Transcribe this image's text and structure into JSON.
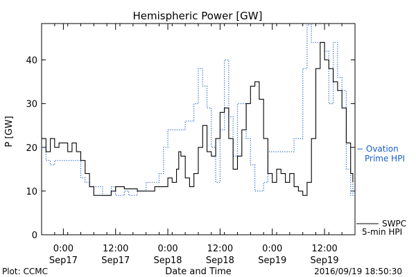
{
  "chart_data": {
    "type": "line",
    "title": "Hemispheric Power [GW]",
    "xlabel": "Date and Time",
    "ylabel": "P [GW]",
    "xlim": [
      "2016-09-16 19:00",
      "2016-09-19 19:00"
    ],
    "ylim": [
      0,
      48
    ],
    "grid": false,
    "y_ticks": [
      0,
      10,
      20,
      30,
      40
    ],
    "x_ticks": [
      {
        "time": "2016-09-17 00:00",
        "label": "0:00",
        "date": "Sep17"
      },
      {
        "time": "2016-09-17 12:00",
        "label": "12:00",
        "date": "Sep17"
      },
      {
        "time": "2016-09-18 00:00",
        "label": "0:00",
        "date": "Sep18"
      },
      {
        "time": "2016-09-18 12:00",
        "label": "12:00",
        "date": "Sep18"
      },
      {
        "time": "2016-09-19 00:00",
        "label": "0:00",
        "date": "Sep19"
      },
      {
        "time": "2016-09-19 12:00",
        "label": "12:00",
        "date": "Sep19"
      }
    ],
    "series": [
      {
        "name": "SWPC 5-min HPI",
        "legend_lines": [
          "SWPC",
          "5-min HPI"
        ],
        "color": "#000000",
        "style": "solid",
        "points": [
          [
            "2016-09-16 19:00",
            22
          ],
          [
            "2016-09-16 20:00",
            19
          ],
          [
            "2016-09-16 21:00",
            22
          ],
          [
            "2016-09-16 22:00",
            20
          ],
          [
            "2016-09-16 23:00",
            21
          ],
          [
            "2016-09-17 00:00",
            21
          ],
          [
            "2016-09-17 01:00",
            19
          ],
          [
            "2016-09-17 02:00",
            21
          ],
          [
            "2016-09-17 03:00",
            19
          ],
          [
            "2016-09-17 04:00",
            17
          ],
          [
            "2016-09-17 05:00",
            14
          ],
          [
            "2016-09-17 06:00",
            11
          ],
          [
            "2016-09-17 07:00",
            9
          ],
          [
            "2016-09-17 09:00",
            9
          ],
          [
            "2016-09-17 11:00",
            10
          ],
          [
            "2016-09-17 12:00",
            11
          ],
          [
            "2016-09-17 14:00",
            10.5
          ],
          [
            "2016-09-17 17:00",
            10
          ],
          [
            "2016-09-17 19:00",
            10
          ],
          [
            "2016-09-17 21:00",
            11
          ],
          [
            "2016-09-17 22:00",
            11
          ],
          [
            "2016-09-18 00:00",
            13
          ],
          [
            "2016-09-18 01:00",
            12
          ],
          [
            "2016-09-18 02:00",
            15
          ],
          [
            "2016-09-18 02:30",
            19
          ],
          [
            "2016-09-18 03:00",
            18
          ],
          [
            "2016-09-18 04:00",
            13
          ],
          [
            "2016-09-18 05:00",
            11
          ],
          [
            "2016-09-18 06:00",
            14
          ],
          [
            "2016-09-18 07:00",
            20
          ],
          [
            "2016-09-18 08:00",
            25
          ],
          [
            "2016-09-18 09:00",
            19
          ],
          [
            "2016-09-18 10:00",
            18
          ],
          [
            "2016-09-18 11:00",
            22
          ],
          [
            "2016-09-18 12:00",
            28
          ],
          [
            "2016-09-18 13:00",
            29
          ],
          [
            "2016-09-18 14:00",
            22
          ],
          [
            "2016-09-18 15:00",
            15
          ],
          [
            "2016-09-18 16:00",
            18
          ],
          [
            "2016-09-18 17:00",
            24
          ],
          [
            "2016-09-18 18:00",
            30
          ],
          [
            "2016-09-18 19:00",
            34
          ],
          [
            "2016-09-18 20:00",
            35
          ],
          [
            "2016-09-18 21:00",
            31
          ],
          [
            "2016-09-18 22:00",
            22
          ],
          [
            "2016-09-18 23:00",
            14
          ],
          [
            "2016-09-19 00:00",
            12
          ],
          [
            "2016-09-19 01:00",
            15
          ],
          [
            "2016-09-19 02:00",
            14
          ],
          [
            "2016-09-19 03:00",
            12
          ],
          [
            "2016-09-19 04:00",
            14
          ],
          [
            "2016-09-19 05:00",
            11
          ],
          [
            "2016-09-19 06:00",
            10
          ],
          [
            "2016-09-19 07:00",
            9
          ],
          [
            "2016-09-19 08:00",
            12
          ],
          [
            "2016-09-19 09:00",
            22
          ],
          [
            "2016-09-19 10:00",
            38
          ],
          [
            "2016-09-19 11:00",
            44
          ],
          [
            "2016-09-19 12:00",
            40
          ],
          [
            "2016-09-19 13:00",
            38
          ],
          [
            "2016-09-19 14:00",
            35
          ],
          [
            "2016-09-19 15:00",
            33
          ],
          [
            "2016-09-19 16:00",
            29
          ],
          [
            "2016-09-19 17:00",
            21
          ],
          [
            "2016-09-19 18:00",
            14
          ],
          [
            "2016-09-19 18:30",
            12
          ]
        ]
      },
      {
        "name": "Ovation Prime HPI",
        "legend_lines": [
          "− Ovation",
          "Prime HPI"
        ],
        "color": "#1a5fc8",
        "style": "dotted",
        "points": [
          [
            "2016-09-16 19:00",
            20
          ],
          [
            "2016-09-16 20:00",
            17
          ],
          [
            "2016-09-16 21:00",
            16
          ],
          [
            "2016-09-16 22:00",
            17
          ],
          [
            "2016-09-17 03:00",
            17
          ],
          [
            "2016-09-17 04:00",
            13
          ],
          [
            "2016-09-17 05:00",
            12
          ],
          [
            "2016-09-17 06:00",
            11
          ],
          [
            "2016-09-17 08:00",
            11
          ],
          [
            "2016-09-17 09:00",
            9
          ],
          [
            "2016-09-17 11:00",
            11
          ],
          [
            "2016-09-17 12:00",
            9
          ],
          [
            "2016-09-17 14:00",
            10
          ],
          [
            "2016-09-17 15:00",
            9
          ],
          [
            "2016-09-17 17:00",
            10
          ],
          [
            "2016-09-17 18:00",
            10
          ],
          [
            "2016-09-17 19:00",
            12
          ],
          [
            "2016-09-17 21:00",
            12
          ],
          [
            "2016-09-17 22:00",
            14
          ],
          [
            "2016-09-17 23:00",
            20
          ],
          [
            "2016-09-18 00:00",
            24
          ],
          [
            "2016-09-18 03:00",
            24
          ],
          [
            "2016-09-18 04:00",
            26
          ],
          [
            "2016-09-18 06:00",
            30
          ],
          [
            "2016-09-18 07:00",
            38
          ],
          [
            "2016-09-18 08:00",
            34
          ],
          [
            "2016-09-18 09:00",
            29
          ],
          [
            "2016-09-18 10:00",
            20
          ],
          [
            "2016-09-18 11:00",
            12
          ],
          [
            "2016-09-18 12:00",
            24
          ],
          [
            "2016-09-18 13:00",
            40
          ],
          [
            "2016-09-18 14:00",
            27
          ],
          [
            "2016-09-18 15:00",
            18
          ],
          [
            "2016-09-18 16:00",
            30
          ],
          [
            "2016-09-18 18:00",
            22
          ],
          [
            "2016-09-18 19:00",
            16
          ],
          [
            "2016-09-18 20:00",
            10
          ],
          [
            "2016-09-18 22:00",
            12
          ],
          [
            "2016-09-18 23:00",
            19
          ],
          [
            "2016-09-19 04:00",
            19
          ],
          [
            "2016-09-19 05:00",
            22
          ],
          [
            "2016-09-19 07:00",
            38
          ],
          [
            "2016-09-19 08:00",
            48
          ],
          [
            "2016-09-19 09:00",
            44
          ],
          [
            "2016-09-19 11:00",
            44
          ],
          [
            "2016-09-19 12:00",
            42
          ],
          [
            "2016-09-19 13:00",
            30
          ],
          [
            "2016-09-19 14:00",
            44
          ],
          [
            "2016-09-19 15:00",
            36
          ],
          [
            "2016-09-19 16:00",
            33
          ],
          [
            "2016-09-19 17:00",
            15
          ],
          [
            "2016-09-19 18:00",
            9
          ],
          [
            "2016-09-19 18:30",
            12
          ]
        ]
      }
    ]
  },
  "footer": {
    "left": "Plot: CCMC",
    "right": "2016/09/19 18:50:30"
  }
}
